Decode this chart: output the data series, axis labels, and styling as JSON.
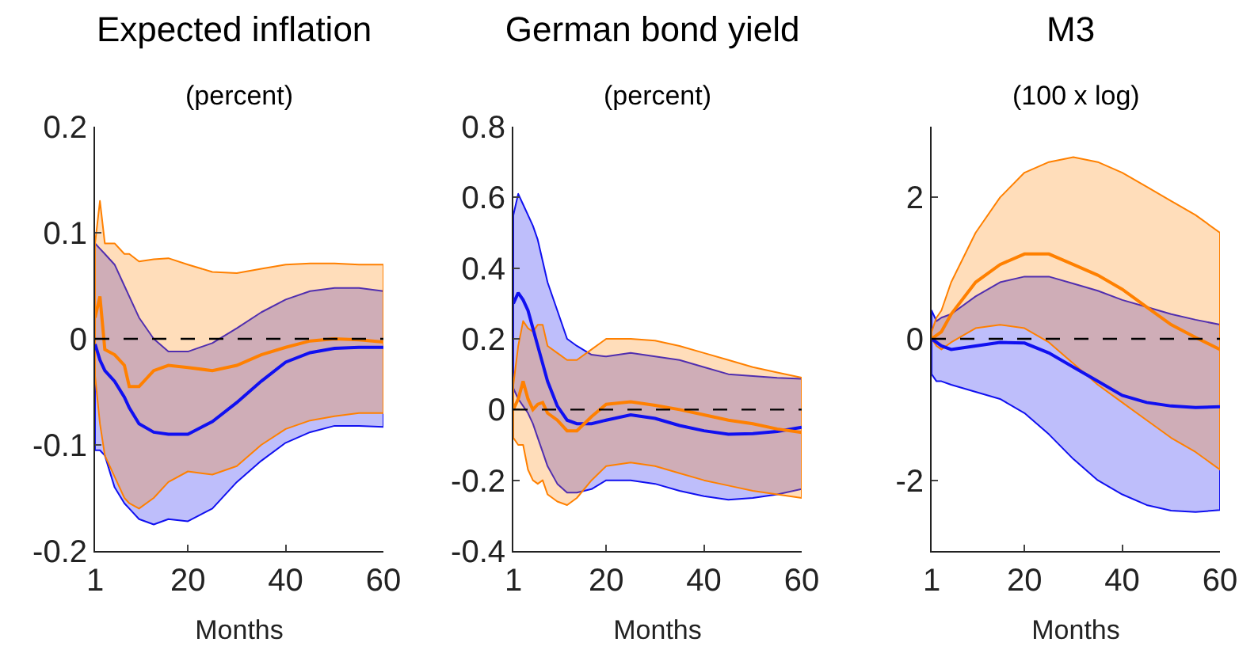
{
  "chart_data": [
    {
      "type": "line",
      "title": "Expected inflation",
      "subtitle": "(percent)",
      "xlabel": "Months",
      "xlim": [
        1,
        60
      ],
      "xticks": [
        1,
        20,
        40,
        60
      ],
      "ylim": [
        -0.2,
        0.2
      ],
      "yticks": [
        -0.2,
        -0.1,
        0,
        0.1,
        0.2
      ],
      "ref_lines": [
        {
          "axis": "y",
          "value": 0,
          "color": "#000000",
          "line_style": "dashed"
        }
      ],
      "series": [
        {
          "color": "#1010f0",
          "x": [
            1,
            2,
            3,
            5,
            7,
            8,
            10,
            13,
            16,
            20,
            25,
            30,
            35,
            40,
            45,
            50,
            55,
            60
          ],
          "values": [
            -0.005,
            -0.02,
            -0.03,
            -0.04,
            -0.055,
            -0.065,
            -0.08,
            -0.088,
            -0.09,
            -0.09,
            -0.078,
            -0.06,
            -0.04,
            -0.022,
            -0.013,
            -0.009,
            -0.008,
            -0.008
          ],
          "upper": [
            0.09,
            0.085,
            0.08,
            0.07,
            0.05,
            0.04,
            0.02,
            0.0,
            -0.012,
            -0.012,
            -0.004,
            0.01,
            0.025,
            0.037,
            0.045,
            0.048,
            0.048,
            0.045
          ],
          "lower": [
            -0.105,
            -0.105,
            -0.11,
            -0.14,
            -0.155,
            -0.16,
            -0.17,
            -0.175,
            -0.17,
            -0.172,
            -0.16,
            -0.135,
            -0.115,
            -0.098,
            -0.088,
            -0.082,
            -0.082,
            -0.083
          ]
        },
        {
          "color": "#ff8000",
          "x": [
            1,
            2,
            3,
            5,
            7,
            8,
            10,
            13,
            16,
            20,
            25,
            30,
            35,
            40,
            45,
            50,
            55,
            60
          ],
          "values": [
            0.02,
            0.04,
            -0.01,
            -0.015,
            -0.025,
            -0.045,
            -0.045,
            -0.03,
            -0.025,
            -0.027,
            -0.03,
            -0.025,
            -0.015,
            -0.008,
            -0.002,
            0.0,
            -0.001,
            -0.003
          ],
          "upper": [
            0.09,
            0.13,
            0.09,
            0.09,
            0.08,
            0.08,
            0.073,
            0.075,
            0.076,
            0.07,
            0.063,
            0.062,
            0.066,
            0.07,
            0.071,
            0.071,
            0.07,
            0.07
          ],
          "lower": [
            -0.035,
            -0.08,
            -0.11,
            -0.13,
            -0.15,
            -0.155,
            -0.16,
            -0.15,
            -0.135,
            -0.125,
            -0.128,
            -0.12,
            -0.1,
            -0.085,
            -0.077,
            -0.073,
            -0.07,
            -0.07
          ]
        }
      ]
    },
    {
      "type": "line",
      "title": "German bond yield",
      "subtitle": "(percent)",
      "xlabel": "Months",
      "xlim": [
        1,
        60
      ],
      "xticks": [
        1,
        20,
        40,
        60
      ],
      "ylim": [
        -0.4,
        0.8
      ],
      "yticks": [
        -0.4,
        -0.2,
        0,
        0.2,
        0.4,
        0.6,
        0.8
      ],
      "ref_lines": [
        {
          "axis": "y",
          "value": 0,
          "color": "#000000",
          "line_style": "dashed"
        }
      ],
      "series": [
        {
          "color": "#1010f0",
          "x": [
            1,
            2,
            3,
            4,
            5,
            6,
            7,
            8,
            10,
            12,
            14,
            17,
            20,
            25,
            30,
            35,
            40,
            45,
            50,
            55,
            60
          ],
          "values": [
            0.3,
            0.33,
            0.31,
            0.28,
            0.23,
            0.18,
            0.13,
            0.08,
            0.01,
            -0.03,
            -0.04,
            -0.04,
            -0.03,
            -0.015,
            -0.025,
            -0.045,
            -0.06,
            -0.07,
            -0.068,
            -0.062,
            -0.05
          ],
          "upper": [
            0.55,
            0.61,
            0.58,
            0.55,
            0.52,
            0.48,
            0.42,
            0.36,
            0.28,
            0.2,
            0.18,
            0.155,
            0.15,
            0.16,
            0.15,
            0.14,
            0.12,
            0.1,
            0.095,
            0.09,
            0.087
          ],
          "lower": [
            0.06,
            0.03,
            0.01,
            -0.01,
            -0.04,
            -0.08,
            -0.12,
            -0.16,
            -0.21,
            -0.235,
            -0.235,
            -0.225,
            -0.2,
            -0.2,
            -0.21,
            -0.23,
            -0.245,
            -0.255,
            -0.25,
            -0.24,
            -0.225
          ]
        },
        {
          "color": "#ff8000",
          "x": [
            1,
            2,
            3,
            4,
            5,
            6,
            7,
            8,
            10,
            12,
            14,
            17,
            20,
            25,
            30,
            35,
            40,
            45,
            50,
            55,
            60
          ],
          "values": [
            0.0,
            0.03,
            0.08,
            0.03,
            0.0,
            0.015,
            0.02,
            -0.01,
            -0.03,
            -0.06,
            -0.06,
            -0.02,
            0.015,
            0.022,
            0.012,
            0.0,
            -0.015,
            -0.03,
            -0.04,
            -0.055,
            -0.065
          ],
          "upper": [
            0.07,
            0.18,
            0.25,
            0.23,
            0.22,
            0.24,
            0.24,
            0.18,
            0.16,
            0.14,
            0.14,
            0.17,
            0.2,
            0.2,
            0.195,
            0.18,
            0.16,
            0.14,
            0.12,
            0.105,
            0.09
          ],
          "lower": [
            -0.08,
            -0.1,
            -0.1,
            -0.17,
            -0.2,
            -0.21,
            -0.2,
            -0.24,
            -0.26,
            -0.27,
            -0.25,
            -0.2,
            -0.16,
            -0.15,
            -0.16,
            -0.18,
            -0.2,
            -0.215,
            -0.23,
            -0.24,
            -0.25
          ]
        }
      ]
    },
    {
      "type": "line",
      "title": "M3",
      "subtitle": "(100 x log)",
      "xlabel": "Months",
      "xlim": [
        1,
        60
      ],
      "xticks": [
        1,
        20,
        40,
        60
      ],
      "ylim": [
        -3,
        3
      ],
      "yticks": [
        -2,
        0,
        2
      ],
      "ref_lines": [
        {
          "axis": "y",
          "value": 0,
          "color": "#000000",
          "line_style": "dashed"
        }
      ],
      "series": [
        {
          "color": "#1010f0",
          "x": [
            1,
            2,
            3,
            5,
            10,
            15,
            20,
            25,
            30,
            35,
            40,
            45,
            50,
            55,
            60
          ],
          "values": [
            0,
            -0.05,
            -0.1,
            -0.15,
            -0.1,
            -0.05,
            -0.06,
            -0.2,
            -0.4,
            -0.6,
            -0.8,
            -0.9,
            -0.95,
            -0.97,
            -0.96
          ],
          "upper": [
            0.4,
            0.25,
            0.3,
            0.35,
            0.6,
            0.8,
            0.88,
            0.88,
            0.78,
            0.68,
            0.55,
            0.45,
            0.35,
            0.27,
            0.2
          ],
          "lower": [
            -0.5,
            -0.6,
            -0.6,
            -0.65,
            -0.75,
            -0.85,
            -1.05,
            -1.35,
            -1.7,
            -2.0,
            -2.2,
            -2.35,
            -2.43,
            -2.45,
            -2.42
          ]
        },
        {
          "color": "#ff8000",
          "x": [
            1,
            2,
            3,
            5,
            10,
            15,
            20,
            25,
            30,
            35,
            40,
            45,
            50,
            55,
            60
          ],
          "values": [
            0,
            0.05,
            0.1,
            0.35,
            0.8,
            1.05,
            1.2,
            1.2,
            1.05,
            0.9,
            0.7,
            0.45,
            0.2,
            0.02,
            -0.15
          ],
          "upper": [
            0.1,
            0.3,
            0.4,
            0.8,
            1.5,
            2.0,
            2.35,
            2.5,
            2.57,
            2.5,
            2.35,
            2.15,
            1.95,
            1.75,
            1.5
          ],
          "lower": [
            0,
            -0.1,
            -0.15,
            -0.05,
            0.15,
            0.2,
            0.15,
            -0.05,
            -0.35,
            -0.65,
            -0.9,
            -1.15,
            -1.4,
            -1.6,
            -1.85
          ]
        }
      ]
    }
  ]
}
